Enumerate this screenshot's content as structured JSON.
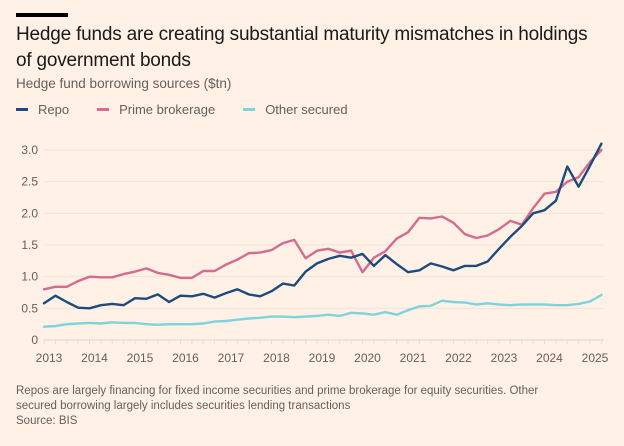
{
  "header": {
    "title": "Hedge funds are creating substantial maturity mismatches in holdings of government bonds",
    "subtitle": "Hedge fund borrowing sources ($tn)"
  },
  "legend": [
    {
      "label": "Repo",
      "color": "#1e4b7e"
    },
    {
      "label": "Prime brokerage",
      "color": "#d56b8f"
    },
    {
      "label": "Other secured",
      "color": "#7fd3dc"
    }
  ],
  "footer": {
    "note_line1": "Repos are largely financing for fixed income securities and prime brokerage for equity securities. Other",
    "note_line2": "secured borrowing largely includes securities lending transactions",
    "source": "Source: BIS"
  },
  "chart_data": {
    "type": "line",
    "title": "Hedge funds are creating substantial maturity mismatches in holdings of government bonds",
    "subtitle": "Hedge fund borrowing sources ($tn)",
    "xlabel": "",
    "ylabel": "",
    "ylim": [
      0,
      3.0
    ],
    "yticks": [
      0,
      0.5,
      1.0,
      1.5,
      2.0,
      2.5,
      3.0
    ],
    "ytick_labels": [
      "0",
      "0.5",
      "1.0",
      "1.5",
      "2.0",
      "2.5",
      "3.0"
    ],
    "xticks": [
      2013,
      2014,
      2015,
      2016,
      2017,
      2018,
      2019,
      2020,
      2021,
      2022,
      2023,
      2024,
      2025
    ],
    "xtick_labels": [
      "2013",
      "2014",
      "2015",
      "2016",
      "2017",
      "2018",
      "2019",
      "2020",
      "2021",
      "2022",
      "2023",
      "2024",
      "2025"
    ],
    "grid": true,
    "legend_position": "top-left",
    "x_start": 2013.0,
    "x_step": 0.25,
    "series": [
      {
        "name": "Repo",
        "color": "#1e4b7e",
        "values": [
          0.58,
          0.7,
          0.6,
          0.51,
          0.5,
          0.55,
          0.57,
          0.55,
          0.66,
          0.65,
          0.72,
          0.6,
          0.7,
          0.69,
          0.73,
          0.67,
          0.74,
          0.8,
          0.72,
          0.69,
          0.77,
          0.89,
          0.86,
          1.08,
          1.21,
          1.28,
          1.33,
          1.3,
          1.36,
          1.17,
          1.34,
          1.2,
          1.07,
          1.1,
          1.21,
          1.16,
          1.1,
          1.17,
          1.17,
          1.24,
          1.44,
          1.63,
          1.8,
          2.0,
          2.05,
          2.2,
          2.74,
          2.42,
          2.75,
          3.1
        ]
      },
      {
        "name": "Prime brokerage",
        "color": "#d56b8f",
        "values": [
          0.8,
          0.84,
          0.84,
          0.93,
          1.0,
          0.99,
          0.99,
          1.04,
          1.08,
          1.13,
          1.06,
          1.03,
          0.98,
          0.98,
          1.09,
          1.09,
          1.19,
          1.27,
          1.37,
          1.38,
          1.42,
          1.53,
          1.58,
          1.29,
          1.41,
          1.44,
          1.38,
          1.41,
          1.07,
          1.3,
          1.4,
          1.6,
          1.7,
          1.93,
          1.92,
          1.95,
          1.85,
          1.67,
          1.61,
          1.65,
          1.75,
          1.88,
          1.82,
          2.08,
          2.31,
          2.34,
          2.5,
          2.57,
          2.81,
          3.0
        ]
      },
      {
        "name": "Other secured",
        "color": "#7fd3dc",
        "values": [
          0.21,
          0.22,
          0.25,
          0.26,
          0.27,
          0.26,
          0.28,
          0.27,
          0.27,
          0.25,
          0.24,
          0.25,
          0.25,
          0.25,
          0.26,
          0.29,
          0.3,
          0.32,
          0.34,
          0.35,
          0.37,
          0.37,
          0.36,
          0.37,
          0.38,
          0.4,
          0.38,
          0.43,
          0.42,
          0.4,
          0.44,
          0.4,
          0.47,
          0.53,
          0.54,
          0.62,
          0.6,
          0.59,
          0.56,
          0.58,
          0.56,
          0.55,
          0.56,
          0.56,
          0.56,
          0.55,
          0.55,
          0.57,
          0.61,
          0.71
        ]
      }
    ]
  }
}
